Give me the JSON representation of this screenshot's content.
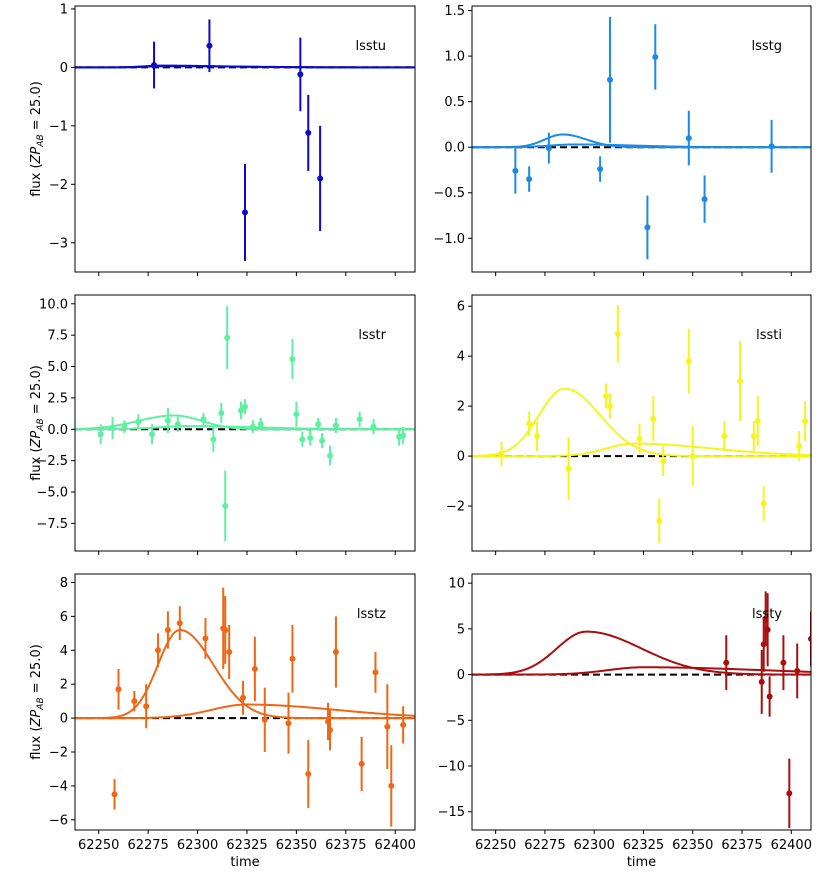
{
  "chart_data": {
    "type": "scatter",
    "xlabel": "time",
    "ylabel_prefix": "flux (",
    "ylabel_zp": "ZP",
    "ylabel_sub": "AB",
    "ylabel_suffix": " = 25.0)",
    "xlim": [
      62238,
      62410
    ],
    "xticks": [
      62250,
      62275,
      62300,
      62325,
      62350,
      62375,
      62400
    ],
    "panels": [
      {
        "band": "lsstu",
        "color": "#0a0ac8",
        "ylim": [
          -3.5,
          1.05
        ],
        "yticks": [
          1,
          0,
          -1,
          -2,
          -3
        ],
        "points": [
          {
            "x": 62278,
            "y": 0.04,
            "err": 0.4
          },
          {
            "x": 62306,
            "y": 0.37,
            "err": 0.45
          },
          {
            "x": 62324,
            "y": -2.48,
            "err": 0.83
          },
          {
            "x": 62352,
            "y": -0.12,
            "err": 0.63
          },
          {
            "x": 62356,
            "y": -1.12,
            "err": 0.65
          },
          {
            "x": 62362,
            "y": -1.9,
            "err": 0.9
          }
        ],
        "curves": [
          {
            "peak_x": 62282,
            "peak_y": 0.03,
            "rise": 9,
            "decay": 30
          },
          {
            "peak_x": 62284,
            "peak_y": 0.02,
            "rise": 10,
            "decay": 40
          }
        ]
      },
      {
        "band": "lsstg",
        "color": "#1a8ae6",
        "ylim": [
          -1.37,
          1.55
        ],
        "yticks": [
          1.5,
          1.0,
          0.5,
          0.0,
          -0.5,
          -1.0
        ],
        "points": [
          {
            "x": 62260,
            "y": -0.26,
            "err": 0.25
          },
          {
            "x": 62267,
            "y": -0.35,
            "err": 0.14
          },
          {
            "x": 62277,
            "y": -0.01,
            "err": 0.17
          },
          {
            "x": 62303,
            "y": -0.24,
            "err": 0.14
          },
          {
            "x": 62308,
            "y": 0.74,
            "err": 0.69
          },
          {
            "x": 62327,
            "y": -0.88,
            "err": 0.35
          },
          {
            "x": 62331,
            "y": 0.99,
            "err": 0.36
          },
          {
            "x": 62348,
            "y": 0.1,
            "err": 0.3
          },
          {
            "x": 62356,
            "y": -0.57,
            "err": 0.26
          },
          {
            "x": 62390,
            "y": 0.01,
            "err": 0.29
          }
        ],
        "curves": [
          {
            "peak_x": 62284,
            "peak_y": 0.14,
            "rise": 9,
            "decay": 12
          },
          {
            "peak_x": 62290,
            "peak_y": 0.03,
            "rise": 12,
            "decay": 30
          }
        ]
      },
      {
        "band": "lsstr",
        "color": "#5cf0a0",
        "ylim": [
          -9.7,
          10.7
        ],
        "yticks": [
          10.0,
          7.5,
          5.0,
          2.5,
          0.0,
          -2.5,
          -5.0,
          -7.5
        ],
        "points": [
          {
            "x": 62251,
            "y": -0.4,
            "err": 0.8
          },
          {
            "x": 62257,
            "y": 0.1,
            "err": 0.9
          },
          {
            "x": 62263,
            "y": 0.2,
            "err": 0.5
          },
          {
            "x": 62270,
            "y": 0.6,
            "err": 0.6
          },
          {
            "x": 62277,
            "y": -0.4,
            "err": 0.8
          },
          {
            "x": 62285,
            "y": 0.7,
            "err": 1.0
          },
          {
            "x": 62290,
            "y": 0.4,
            "err": 0.6
          },
          {
            "x": 62303,
            "y": 0.8,
            "err": 0.5
          },
          {
            "x": 62308,
            "y": -0.8,
            "err": 1.0
          },
          {
            "x": 62312,
            "y": 1.3,
            "err": 0.8
          },
          {
            "x": 62314,
            "y": -6.1,
            "err": 2.8
          },
          {
            "x": 62315,
            "y": 7.3,
            "err": 2.5
          },
          {
            "x": 62322,
            "y": 1.5,
            "err": 0.7
          },
          {
            "x": 62324,
            "y": 1.8,
            "err": 0.6
          },
          {
            "x": 62328,
            "y": 0.2,
            "err": 0.5
          },
          {
            "x": 62332,
            "y": 0.4,
            "err": 0.5
          },
          {
            "x": 62348,
            "y": 5.6,
            "err": 1.6
          },
          {
            "x": 62350,
            "y": 1.2,
            "err": 1.0
          },
          {
            "x": 62353,
            "y": -0.8,
            "err": 0.6
          },
          {
            "x": 62357,
            "y": -0.7,
            "err": 0.6
          },
          {
            "x": 62361,
            "y": 0.4,
            "err": 0.5
          },
          {
            "x": 62363,
            "y": -0.9,
            "err": 0.6
          },
          {
            "x": 62367,
            "y": -2.1,
            "err": 0.8
          },
          {
            "x": 62370,
            "y": 0.3,
            "err": 0.6
          },
          {
            "x": 62382,
            "y": 0.8,
            "err": 0.6
          },
          {
            "x": 62389,
            "y": 0.2,
            "err": 0.6
          },
          {
            "x": 62402,
            "y": -0.6,
            "err": 0.7
          },
          {
            "x": 62404,
            "y": -0.5,
            "err": 0.7
          }
        ],
        "curves": [
          {
            "peak_x": 62288,
            "peak_y": 1.1,
            "rise": 18,
            "decay": 14
          },
          {
            "peak_x": 62295,
            "peak_y": 0.25,
            "rise": 15,
            "decay": 35
          }
        ]
      },
      {
        "band": "lssti",
        "color": "#f5f51e",
        "ylim": [
          -3.8,
          6.45
        ],
        "yticks": [
          6,
          4,
          2,
          0,
          -2
        ],
        "points": [
          {
            "x": 62253,
            "y": 0.1,
            "err": 0.5
          },
          {
            "x": 62267,
            "y": 1.3,
            "err": 0.5
          },
          {
            "x": 62271,
            "y": 0.8,
            "err": 0.6
          },
          {
            "x": 62287,
            "y": -0.5,
            "err": 1.25
          },
          {
            "x": 62306,
            "y": 2.4,
            "err": 0.5
          },
          {
            "x": 62308,
            "y": 2.0,
            "err": 0.5
          },
          {
            "x": 62312,
            "y": 4.9,
            "err": 1.15
          },
          {
            "x": 62323,
            "y": 0.7,
            "err": 0.6
          },
          {
            "x": 62330,
            "y": 1.5,
            "err": 0.9
          },
          {
            "x": 62333,
            "y": -2.6,
            "err": 0.9
          },
          {
            "x": 62335,
            "y": -0.2,
            "err": 0.6
          },
          {
            "x": 62348,
            "y": 3.8,
            "err": 1.3
          },
          {
            "x": 62350,
            "y": 0.0,
            "err": 1.2
          },
          {
            "x": 62366,
            "y": 0.8,
            "err": 0.6
          },
          {
            "x": 62374,
            "y": 3.0,
            "err": 1.6
          },
          {
            "x": 62381,
            "y": 0.8,
            "err": 0.6
          },
          {
            "x": 62383,
            "y": 1.4,
            "err": 1.0
          },
          {
            "x": 62386,
            "y": -1.9,
            "err": 0.7
          },
          {
            "x": 62404,
            "y": 0.4,
            "err": 0.6
          },
          {
            "x": 62407,
            "y": 1.4,
            "err": 0.8
          }
        ],
        "curves": [
          {
            "peak_x": 62285,
            "peak_y": 2.7,
            "rise": 13,
            "decay": 18
          },
          {
            "peak_x": 62320,
            "peak_y": 0.5,
            "rise": 14,
            "decay": 40
          }
        ]
      },
      {
        "band": "lsstz",
        "color": "#f06614",
        "ylim": [
          -6.6,
          8.5
        ],
        "yticks": [
          8,
          6,
          4,
          2,
          0,
          -2,
          -4,
          -6
        ],
        "points": [
          {
            "x": 62258,
            "y": -4.5,
            "err": 0.9
          },
          {
            "x": 62260,
            "y": 1.7,
            "err": 1.2
          },
          {
            "x": 62268,
            "y": 1.0,
            "err": 0.6
          },
          {
            "x": 62274,
            "y": 0.7,
            "err": 1.3
          },
          {
            "x": 62280,
            "y": 4.0,
            "err": 1.0
          },
          {
            "x": 62285,
            "y": 5.2,
            "err": 1.1
          },
          {
            "x": 62291,
            "y": 5.6,
            "err": 1.0
          },
          {
            "x": 62304,
            "y": 4.7,
            "err": 1.2
          },
          {
            "x": 62313,
            "y": 5.3,
            "err": 2.4
          },
          {
            "x": 62314,
            "y": 5.2,
            "err": 2.0
          },
          {
            "x": 62316,
            "y": 3.9,
            "err": 1.6
          },
          {
            "x": 62323,
            "y": 1.2,
            "err": 1.0
          },
          {
            "x": 62329,
            "y": 2.9,
            "err": 1.9
          },
          {
            "x": 62334,
            "y": -0.1,
            "err": 1.9
          },
          {
            "x": 62346,
            "y": -0.3,
            "err": 1.8
          },
          {
            "x": 62348,
            "y": 3.5,
            "err": 2.0
          },
          {
            "x": 62356,
            "y": -3.3,
            "err": 2.0
          },
          {
            "x": 62366,
            "y": -0.2,
            "err": 1.1
          },
          {
            "x": 62367,
            "y": -0.7,
            "err": 1.2
          },
          {
            "x": 62370,
            "y": 3.9,
            "err": 2.1
          },
          {
            "x": 62383,
            "y": -2.7,
            "err": 1.6
          },
          {
            "x": 62390,
            "y": 2.7,
            "err": 1.2
          },
          {
            "x": 62396,
            "y": -0.5,
            "err": 2.5
          },
          {
            "x": 62398,
            "y": -4.0,
            "err": 2.4
          },
          {
            "x": 62404,
            "y": -0.4,
            "err": 1.1
          }
        ],
        "curves": [
          {
            "peak_x": 62291,
            "peak_y": 5.2,
            "rise": 11,
            "decay": 17
          },
          {
            "peak_x": 62325,
            "peak_y": 0.8,
            "rise": 18,
            "decay": 45
          }
        ]
      },
      {
        "band": "lssty",
        "color": "#a80e0e",
        "ylim": [
          -17.0,
          11.0
        ],
        "yticks": [
          10,
          5,
          0,
          -5,
          -10,
          -15
        ],
        "points": [
          {
            "x": 62367,
            "y": 1.3,
            "err": 3.0
          },
          {
            "x": 62385,
            "y": -0.8,
            "err": 3.5
          },
          {
            "x": 62386,
            "y": 3.3,
            "err": 3.0
          },
          {
            "x": 62387,
            "y": 6.1,
            "err": 3.0
          },
          {
            "x": 62388,
            "y": 4.9,
            "err": 4.0
          },
          {
            "x": 62389,
            "y": -2.4,
            "err": 2.2
          },
          {
            "x": 62396,
            "y": 1.3,
            "err": 3.0
          },
          {
            "x": 62399,
            "y": -13.0,
            "err": 3.8
          },
          {
            "x": 62403,
            "y": 0.4,
            "err": 3.0
          },
          {
            "x": 62410,
            "y": 3.9,
            "err": 3.0
          }
        ],
        "curves": [
          {
            "peak_x": 62296,
            "peak_y": 4.7,
            "rise": 15,
            "decay": 28
          },
          {
            "peak_x": 62325,
            "peak_y": 0.8,
            "rise": 18,
            "decay": 60
          }
        ]
      }
    ]
  }
}
